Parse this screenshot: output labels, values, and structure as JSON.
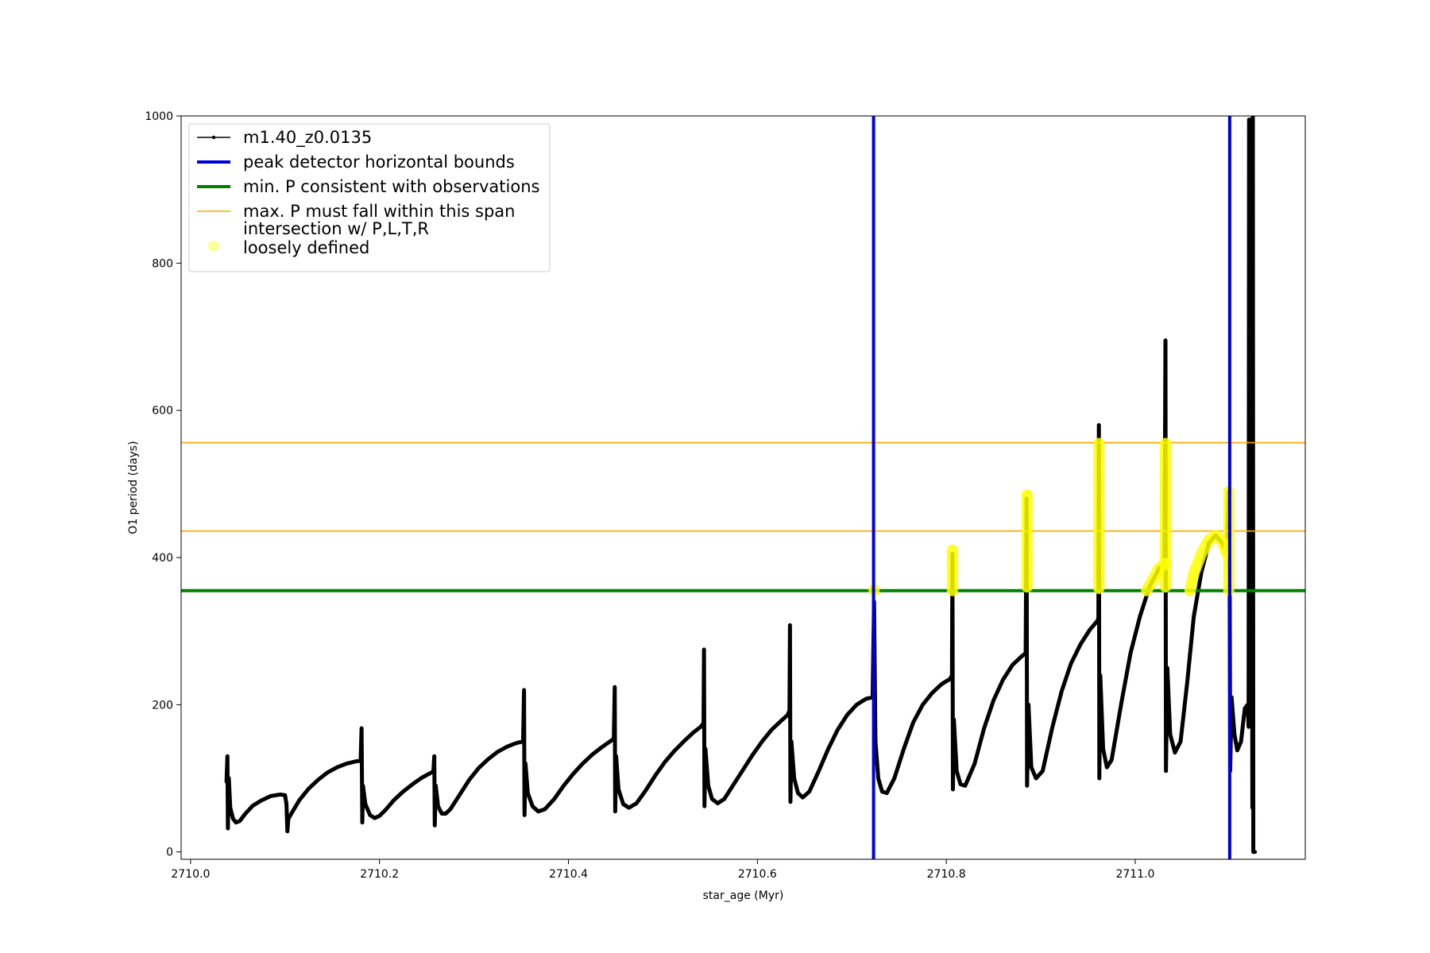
{
  "chart_data": {
    "type": "line",
    "xlabel": "star_age (Myr)",
    "ylabel": "O1 period (days)",
    "xlim": [
      2709.99,
      2711.18
    ],
    "ylim": [
      -10,
      1000
    ],
    "xticks": [
      2710.0,
      2710.2,
      2710.4,
      2710.6,
      2710.8,
      2711.0
    ],
    "xtick_labels": [
      "2710.0",
      "2710.2",
      "2710.4",
      "2710.6",
      "2710.8",
      "2711.0"
    ],
    "yticks": [
      0,
      200,
      400,
      600,
      800,
      1000
    ],
    "ytick_labels": [
      "0",
      "200",
      "400",
      "600",
      "800",
      "1000"
    ],
    "grid": false,
    "legend_position": "upper-left",
    "colors": {
      "track": "#000000",
      "bounds": "#0000dd",
      "min_p": "#008000",
      "max_p_span": "#ffa500",
      "intersection": "#ffff00"
    },
    "legend": [
      {
        "label": "m1.40_z0.0135",
        "style": "line-marker",
        "color": "#000000"
      },
      {
        "label": "peak detector horizontal bounds",
        "style": "thick-line",
        "color": "#0000dd"
      },
      {
        "label": "min. P consistent with observations",
        "style": "thick-line",
        "color": "#008000"
      },
      {
        "label": "max. P must fall within this span",
        "style": "thin-line",
        "color": "#ffa500"
      },
      {
        "label": "intersection w/ P,L,T,R",
        "label_line2": "loosely defined",
        "style": "circle",
        "color": "#ffff99"
      }
    ],
    "vertical_bounds": [
      2710.723,
      2711.1
    ],
    "min_p": 355,
    "max_p_span": [
      436,
      556
    ],
    "series": [
      {
        "name": "m1.40_z0.0135",
        "points": [
          [
            2710.038,
            95
          ],
          [
            2710.039,
            130
          ],
          [
            2710.0395,
            32
          ],
          [
            2710.0405,
            100
          ],
          [
            2710.042,
            60
          ],
          [
            2710.045,
            45
          ],
          [
            2710.048,
            40
          ],
          [
            2710.052,
            42
          ],
          [
            2710.058,
            52
          ],
          [
            2710.066,
            63
          ],
          [
            2710.075,
            70
          ],
          [
            2710.085,
            76
          ],
          [
            2710.095,
            78
          ],
          [
            2710.1,
            77
          ],
          [
            2710.1015,
            65
          ],
          [
            2710.1025,
            28
          ],
          [
            2710.1035,
            45
          ],
          [
            2710.108,
            55
          ],
          [
            2710.115,
            70
          ],
          [
            2710.125,
            86
          ],
          [
            2710.135,
            98
          ],
          [
            2710.145,
            108
          ],
          [
            2710.155,
            115
          ],
          [
            2710.165,
            120
          ],
          [
            2710.175,
            123
          ],
          [
            2710.18,
            124
          ],
          [
            2710.181,
            168
          ],
          [
            2710.1818,
            40
          ],
          [
            2710.1825,
            90
          ],
          [
            2710.185,
            65
          ],
          [
            2710.19,
            50
          ],
          [
            2710.195,
            46
          ],
          [
            2710.2,
            49
          ],
          [
            2710.207,
            58
          ],
          [
            2710.215,
            70
          ],
          [
            2710.225,
            82
          ],
          [
            2710.235,
            92
          ],
          [
            2710.245,
            101
          ],
          [
            2710.255,
            108
          ],
          [
            2710.257,
            109
          ],
          [
            2710.258,
            130
          ],
          [
            2710.2585,
            36
          ],
          [
            2710.2595,
            90
          ],
          [
            2710.262,
            62
          ],
          [
            2710.266,
            52
          ],
          [
            2710.27,
            52
          ],
          [
            2710.275,
            58
          ],
          [
            2710.285,
            78
          ],
          [
            2710.295,
            98
          ],
          [
            2710.305,
            114
          ],
          [
            2710.315,
            126
          ],
          [
            2710.325,
            136
          ],
          [
            2710.335,
            143
          ],
          [
            2710.345,
            148
          ],
          [
            2710.352,
            150
          ],
          [
            2710.353,
            220
          ],
          [
            2710.3535,
            50
          ],
          [
            2710.3545,
            120
          ],
          [
            2710.357,
            80
          ],
          [
            2710.362,
            62
          ],
          [
            2710.368,
            55
          ],
          [
            2710.375,
            58
          ],
          [
            2710.385,
            72
          ],
          [
            2710.395,
            90
          ],
          [
            2710.405,
            106
          ],
          [
            2710.415,
            120
          ],
          [
            2710.425,
            132
          ],
          [
            2710.435,
            142
          ],
          [
            2710.445,
            151
          ],
          [
            2710.448,
            154
          ],
          [
            2710.449,
            224
          ],
          [
            2710.4495,
            55
          ],
          [
            2710.4505,
            130
          ],
          [
            2710.453,
            85
          ],
          [
            2710.458,
            65
          ],
          [
            2710.464,
            60
          ],
          [
            2710.472,
            66
          ],
          [
            2710.482,
            84
          ],
          [
            2710.492,
            104
          ],
          [
            2710.502,
            122
          ],
          [
            2710.512,
            137
          ],
          [
            2710.522,
            150
          ],
          [
            2710.532,
            162
          ],
          [
            2710.54,
            170
          ],
          [
            2710.543,
            175
          ],
          [
            2710.5435,
            275
          ],
          [
            2710.544,
            62
          ],
          [
            2710.545,
            140
          ],
          [
            2710.548,
            90
          ],
          [
            2710.552,
            72
          ],
          [
            2710.558,
            66
          ],
          [
            2710.565,
            72
          ],
          [
            2710.575,
            92
          ],
          [
            2710.585,
            112
          ],
          [
            2710.595,
            132
          ],
          [
            2710.605,
            150
          ],
          [
            2710.615,
            166
          ],
          [
            2710.625,
            178
          ],
          [
            2710.632,
            186
          ],
          [
            2710.634,
            192
          ],
          [
            2710.6345,
            308
          ],
          [
            2710.635,
            68
          ],
          [
            2710.636,
            150
          ],
          [
            2710.639,
            100
          ],
          [
            2710.643,
            80
          ],
          [
            2710.648,
            74
          ],
          [
            2710.655,
            82
          ],
          [
            2710.665,
            110
          ],
          [
            2710.675,
            140
          ],
          [
            2710.685,
            166
          ],
          [
            2710.695,
            186
          ],
          [
            2710.705,
            200
          ],
          [
            2710.715,
            208
          ],
          [
            2710.722,
            210
          ],
          [
            2710.7235,
            340
          ],
          [
            2710.725,
            150
          ],
          [
            2710.728,
            100
          ],
          [
            2710.732,
            82
          ],
          [
            2710.737,
            80
          ],
          [
            2710.745,
            100
          ],
          [
            2710.755,
            140
          ],
          [
            2710.765,
            176
          ],
          [
            2710.775,
            200
          ],
          [
            2710.785,
            216
          ],
          [
            2710.795,
            228
          ],
          [
            2710.804,
            235
          ],
          [
            2710.806,
            240
          ],
          [
            2710.8065,
            405
          ],
          [
            2710.807,
            85
          ],
          [
            2710.808,
            180
          ],
          [
            2710.811,
            110
          ],
          [
            2710.815,
            92
          ],
          [
            2710.82,
            90
          ],
          [
            2710.83,
            120
          ],
          [
            2710.84,
            168
          ],
          [
            2710.85,
            206
          ],
          [
            2710.86,
            234
          ],
          [
            2710.87,
            254
          ],
          [
            2710.88,
            266
          ],
          [
            2710.884,
            270
          ],
          [
            2710.885,
            480
          ],
          [
            2710.8855,
            90
          ],
          [
            2710.887,
            200
          ],
          [
            2710.89,
            115
          ],
          [
            2710.895,
            100
          ],
          [
            2710.902,
            110
          ],
          [
            2710.912,
            168
          ],
          [
            2710.922,
            218
          ],
          [
            2710.932,
            256
          ],
          [
            2710.942,
            282
          ],
          [
            2710.952,
            302
          ],
          [
            2710.96,
            314
          ],
          [
            2710.961,
            318
          ],
          [
            2710.9615,
            580
          ],
          [
            2710.962,
            100
          ],
          [
            2710.963,
            240
          ],
          [
            2710.966,
            140
          ],
          [
            2710.97,
            115
          ],
          [
            2710.975,
            125
          ],
          [
            2710.985,
            200
          ],
          [
            2710.995,
            270
          ],
          [
            2711.005,
            320
          ],
          [
            2711.015,
            360
          ],
          [
            2711.025,
            385
          ],
          [
            2711.031,
            392
          ],
          [
            2711.032,
            695
          ],
          [
            2711.0325,
            110
          ],
          [
            2711.034,
            250
          ],
          [
            2711.037,
            160
          ],
          [
            2711.042,
            135
          ],
          [
            2711.048,
            150
          ],
          [
            2711.055,
            230
          ],
          [
            2711.062,
            320
          ],
          [
            2711.07,
            380
          ],
          [
            2711.078,
            420
          ],
          [
            2711.085,
            430
          ],
          [
            2711.092,
            420
          ],
          [
            2711.097,
            405
          ],
          [
            2711.099,
            490
          ],
          [
            2711.1,
            355
          ],
          [
            2711.1005,
            110
          ],
          [
            2711.102,
            210
          ],
          [
            2711.105,
            160
          ],
          [
            2711.108,
            138
          ],
          [
            2711.112,
            150
          ],
          [
            2711.116,
            195
          ],
          [
            2711.119,
            200
          ],
          [
            2711.12,
            170
          ],
          [
            2711.1205,
            995
          ],
          [
            2711.121,
            200
          ],
          [
            2711.122,
            995
          ],
          [
            2711.1225,
            180
          ],
          [
            2711.123,
            830
          ],
          [
            2711.124,
            60
          ],
          [
            2711.1245,
            1000
          ],
          [
            2711.125,
            0
          ],
          [
            2711.127,
            0
          ]
        ]
      }
    ],
    "intersection_segments": [
      [
        [
          2710.7235,
          355
        ],
        [
          2710.7235,
          356
        ]
      ],
      [
        [
          2710.8065,
          355
        ],
        [
          2710.8065,
          410
        ]
      ],
      [
        [
          2710.8855,
          360
        ],
        [
          2710.8855,
          485
        ]
      ],
      [
        [
          2710.9615,
          358
        ],
        [
          2710.9615,
          555
        ]
      ],
      [
        [
          2711.032,
          360
        ],
        [
          2711.032,
          555
        ]
      ],
      [
        [
          2711.012,
          355
        ],
        [
          2711.018,
          368
        ],
        [
          2711.025,
          385
        ],
        [
          2711.032,
          392
        ]
      ],
      [
        [
          2711.058,
          355
        ],
        [
          2711.062,
          378
        ],
        [
          2711.07,
          405
        ],
        [
          2711.078,
          424
        ],
        [
          2711.085,
          430
        ],
        [
          2711.092,
          422
        ],
        [
          2711.097,
          406
        ]
      ],
      [
        [
          2711.099,
          355
        ],
        [
          2711.099,
          490
        ]
      ]
    ]
  }
}
